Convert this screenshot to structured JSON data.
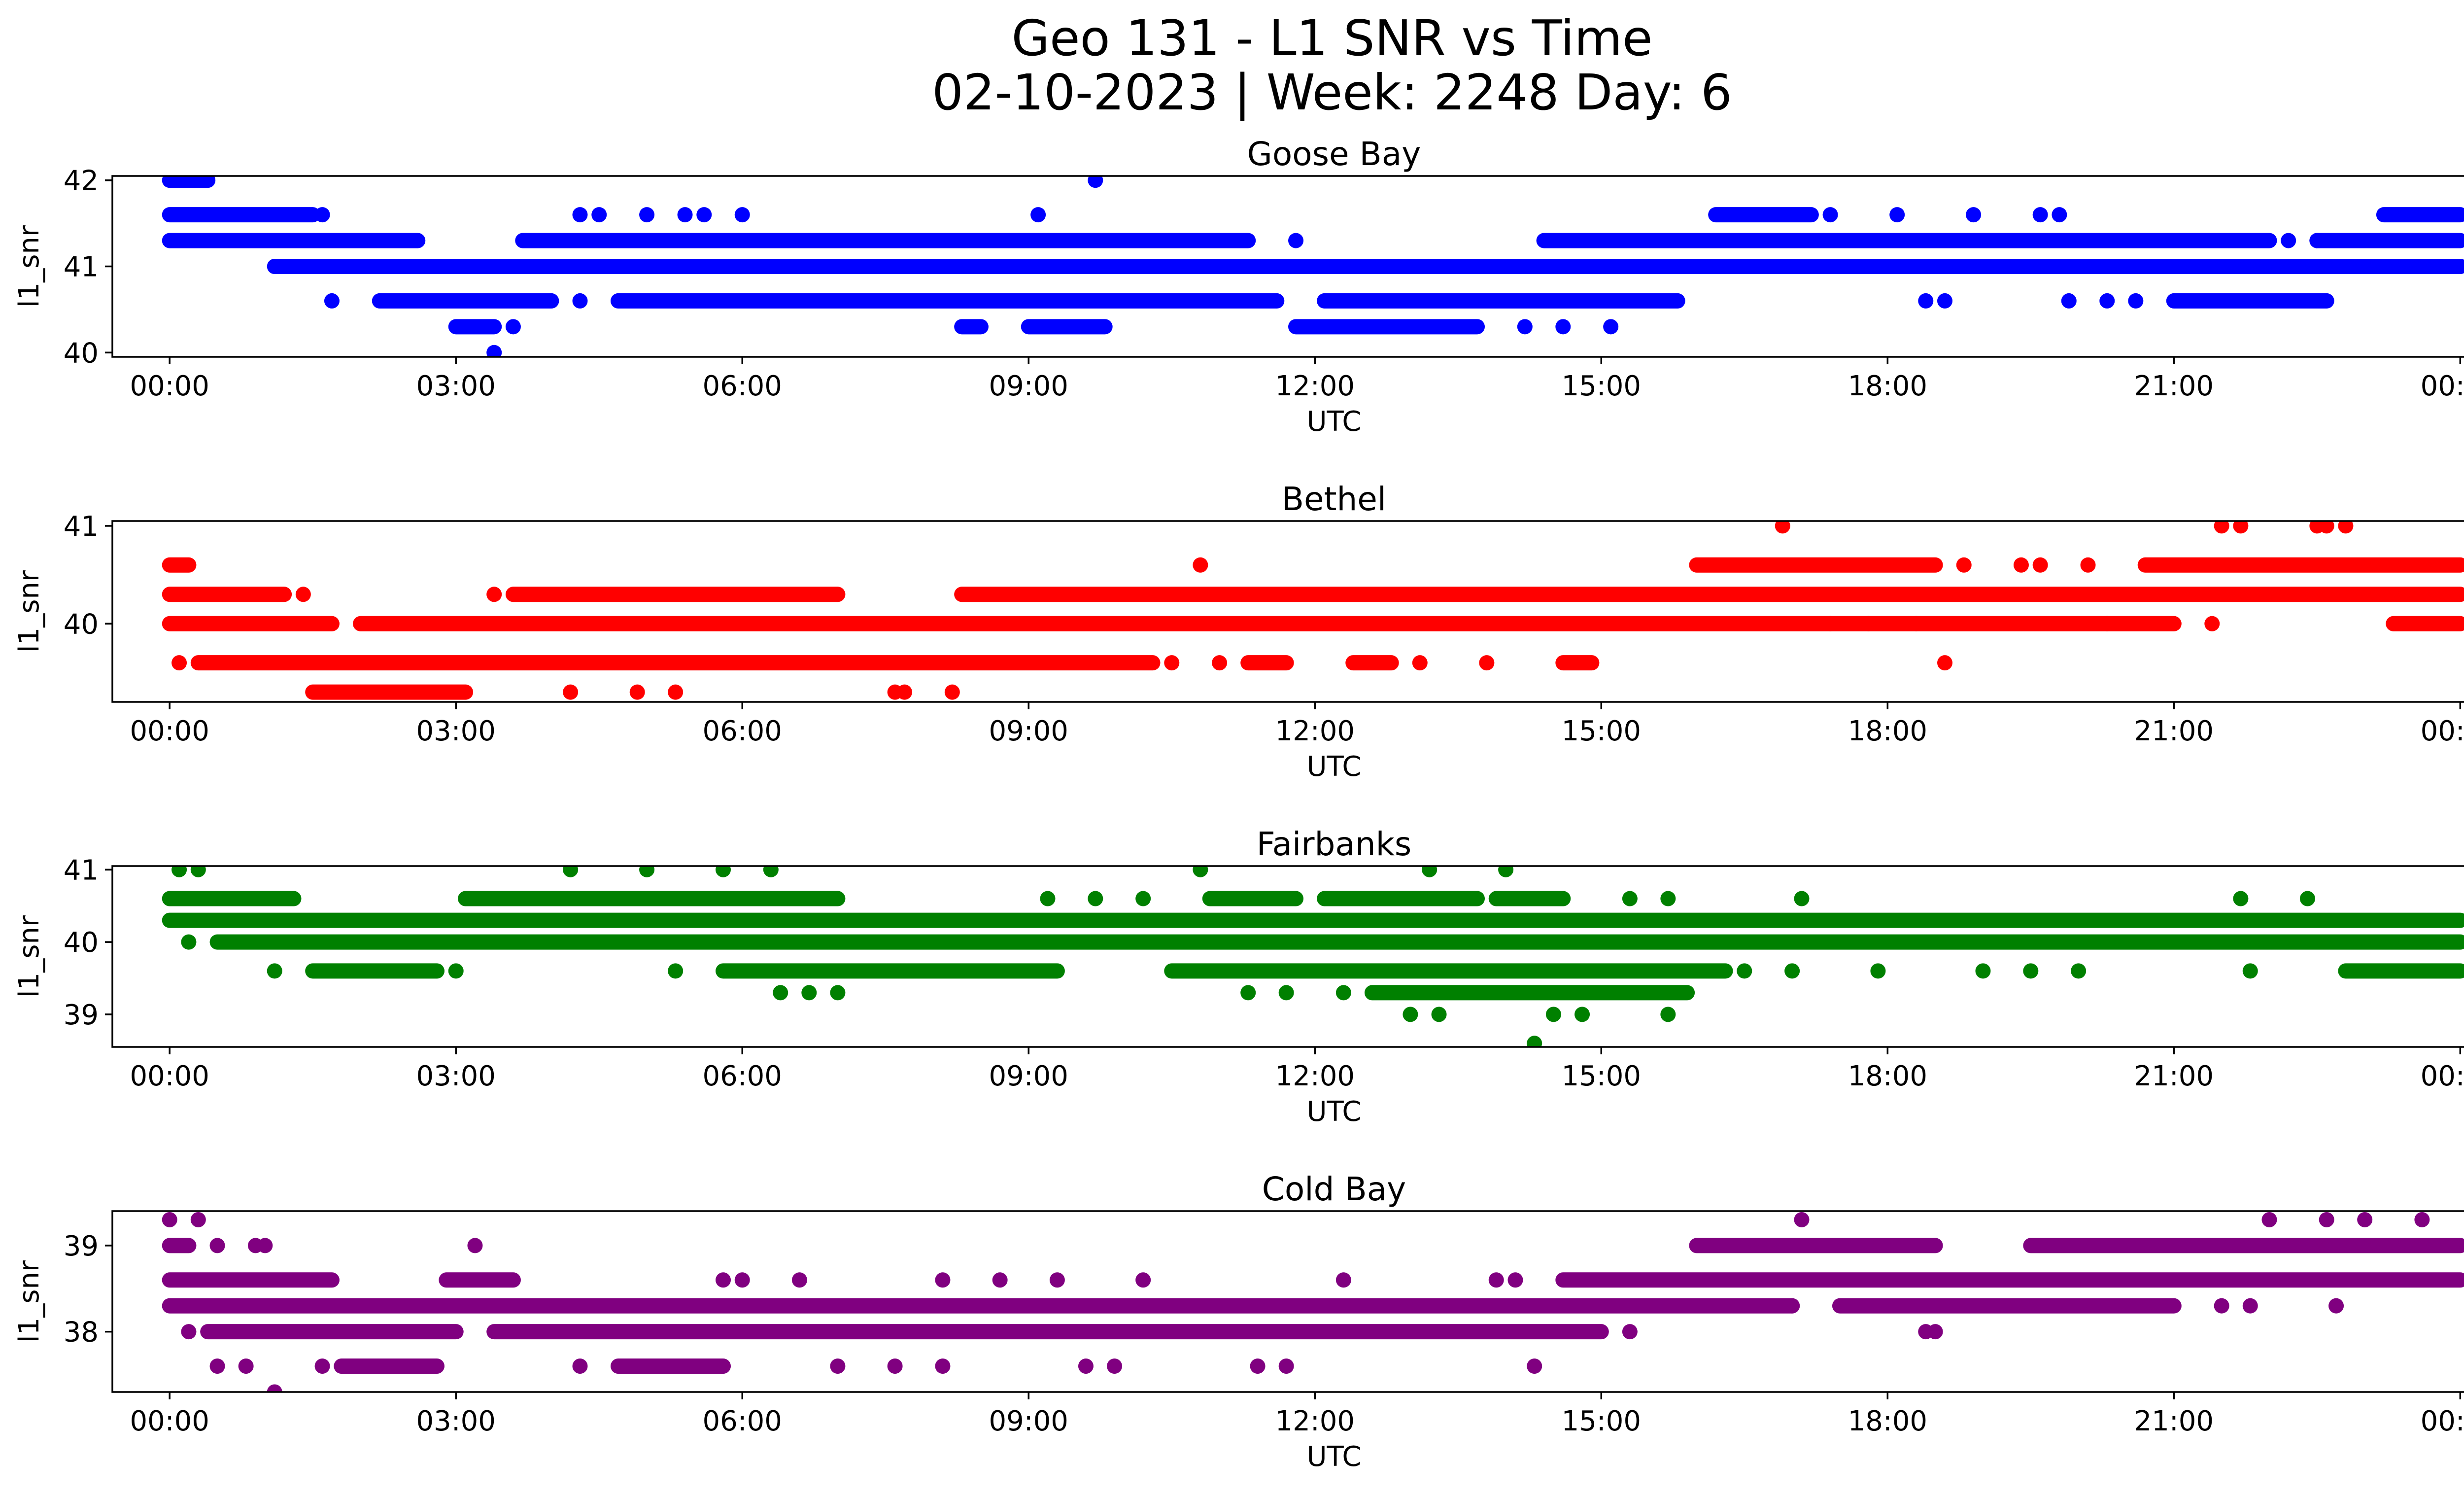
{
  "figure": {
    "title_line1": "Geo 131 - L1 SNR vs Time",
    "title_line2": "02-10-2023 | Week: 2248 Day: 6"
  },
  "chart_data": [
    {
      "type": "scatter",
      "title": "Goose Bay",
      "xlabel": "UTC",
      "ylabel": "l1_snr",
      "color": "#0000ff",
      "x_unit": "hours",
      "xlim": [
        -0.6,
        25.0
      ],
      "ylim": [
        39.95,
        42.05
      ],
      "xticks": [
        0,
        3,
        6,
        9,
        12,
        15,
        18,
        21,
        24
      ],
      "xtick_labels": [
        "00:00",
        "03:00",
        "06:00",
        "09:00",
        "12:00",
        "15:00",
        "18:00",
        "21:00",
        "00:00"
      ],
      "yticks": [
        40,
        41,
        42
      ],
      "ytick_labels": [
        "40",
        "41",
        "42"
      ],
      "bands": [
        {
          "y": 42.0,
          "segments": [
            [
              0.0,
              0.4
            ]
          ]
        },
        {
          "y": 41.6,
          "segments": [
            [
              0.0,
              1.5
            ],
            [
              16.2,
              17.2
            ],
            [
              23.2,
              24.0
            ]
          ]
        },
        {
          "y": 41.3,
          "segments": [
            [
              0.0,
              2.6
            ],
            [
              3.7,
              11.3
            ],
            [
              14.4,
              22.0
            ],
            [
              22.5,
              24.0
            ]
          ]
        },
        {
          "y": 41.0,
          "segments": [
            [
              1.1,
              24.0
            ]
          ]
        },
        {
          "y": 40.6,
          "segments": [
            [
              2.2,
              4.0
            ],
            [
              4.7,
              11.6
            ],
            [
              12.1,
              15.8
            ],
            [
              21.0,
              22.6
            ]
          ]
        },
        {
          "y": 40.3,
          "segments": [
            [
              3.0,
              3.4
            ],
            [
              8.3,
              8.5
            ],
            [
              9.0,
              9.8
            ],
            [
              11.8,
              13.7
            ]
          ]
        }
      ],
      "points": [
        [
          1.7,
          40.6
        ],
        [
          1.6,
          41.6
        ],
        [
          3.6,
          40.3
        ],
        [
          3.4,
          40.0
        ],
        [
          4.3,
          40.6
        ],
        [
          4.3,
          41.6
        ],
        [
          4.5,
          41.6
        ],
        [
          5.0,
          41.6
        ],
        [
          5.4,
          41.6
        ],
        [
          5.6,
          41.6
        ],
        [
          6.0,
          41.6
        ],
        [
          9.1,
          41.6
        ],
        [
          9.7,
          42.0
        ],
        [
          11.8,
          41.3
        ],
        [
          14.2,
          40.3
        ],
        [
          14.6,
          40.3
        ],
        [
          15.1,
          40.3
        ],
        [
          17.4,
          41.6
        ],
        [
          18.1,
          41.6
        ],
        [
          18.9,
          41.6
        ],
        [
          19.6,
          41.6
        ],
        [
          19.8,
          41.6
        ],
        [
          18.4,
          40.6
        ],
        [
          18.6,
          40.6
        ],
        [
          19.9,
          40.6
        ],
        [
          20.3,
          40.6
        ],
        [
          20.6,
          40.6
        ],
        [
          22.2,
          41.3
        ],
        [
          22.5,
          41.3
        ],
        [
          24.0,
          41.0
        ]
      ]
    },
    {
      "type": "scatter",
      "title": "Bethel",
      "xlabel": "UTC",
      "ylabel": "l1_snr",
      "color": "#ff0000",
      "x_unit": "hours",
      "xlim": [
        -0.6,
        25.0
      ],
      "ylim": [
        39.2,
        41.05
      ],
      "xticks": [
        0,
        3,
        6,
        9,
        12,
        15,
        18,
        21,
        24
      ],
      "xtick_labels": [
        "00:00",
        "03:00",
        "06:00",
        "09:00",
        "12:00",
        "15:00",
        "18:00",
        "21:00",
        "00:00"
      ],
      "yticks": [
        40,
        41
      ],
      "ytick_labels": [
        "40",
        "41"
      ],
      "bands": [
        {
          "y": 40.6,
          "segments": [
            [
              0.0,
              0.2
            ],
            [
              16.0,
              18.5
            ],
            [
              20.7,
              24.0
            ]
          ]
        },
        {
          "y": 40.3,
          "segments": [
            [
              0.0,
              1.2
            ],
            [
              3.6,
              7.0
            ],
            [
              8.3,
              24.0
            ]
          ]
        },
        {
          "y": 40.0,
          "segments": [
            [
              0.0,
              1.7
            ],
            [
              2.0,
              21.0
            ],
            [
              23.3,
              24.0
            ]
          ]
        },
        {
          "y": 39.6,
          "segments": [
            [
              0.3,
              10.3
            ],
            [
              11.3,
              11.7
            ],
            [
              12.4,
              12.8
            ],
            [
              14.6,
              14.9
            ]
          ]
        },
        {
          "y": 39.3,
          "segments": [
            [
              1.5,
              3.1
            ]
          ]
        }
      ],
      "points": [
        [
          0.1,
          39.6
        ],
        [
          1.4,
          40.3
        ],
        [
          3.4,
          40.3
        ],
        [
          4.2,
          39.3
        ],
        [
          4.9,
          39.3
        ],
        [
          5.3,
          39.3
        ],
        [
          7.6,
          39.3
        ],
        [
          7.7,
          39.3
        ],
        [
          8.2,
          39.3
        ],
        [
          10.8,
          40.6
        ],
        [
          11.0,
          39.6
        ],
        [
          10.5,
          39.6
        ],
        [
          13.1,
          39.6
        ],
        [
          13.8,
          39.6
        ],
        [
          16.9,
          41.0
        ],
        [
          21.5,
          41.0
        ],
        [
          21.7,
          41.0
        ],
        [
          22.5,
          41.0
        ],
        [
          22.6,
          41.0
        ],
        [
          22.8,
          41.0
        ],
        [
          18.6,
          39.6
        ],
        [
          21.4,
          40.0
        ],
        [
          18.8,
          40.6
        ],
        [
          19.4,
          40.6
        ],
        [
          19.6,
          40.6
        ],
        [
          20.1,
          40.6
        ],
        [
          17.4,
          40.0
        ],
        [
          17.8,
          40.0
        ],
        [
          18.3,
          40.0
        ],
        [
          20.3,
          40.0
        ]
      ]
    },
    {
      "type": "scatter",
      "title": "Fairbanks",
      "xlabel": "UTC",
      "ylabel": "l1_snr",
      "color": "#008000",
      "x_unit": "hours",
      "xlim": [
        -0.6,
        25.0
      ],
      "ylim": [
        38.55,
        41.05
      ],
      "xticks": [
        0,
        3,
        6,
        9,
        12,
        15,
        18,
        21,
        24
      ],
      "xtick_labels": [
        "00:00",
        "03:00",
        "06:00",
        "09:00",
        "12:00",
        "15:00",
        "18:00",
        "21:00",
        "00:00"
      ],
      "yticks": [
        39,
        40,
        41
      ],
      "ytick_labels": [
        "39",
        "40",
        "41"
      ],
      "bands": [
        {
          "y": 40.6,
          "segments": [
            [
              0.0,
              1.3
            ],
            [
              3.1,
              7.0
            ],
            [
              10.9,
              11.8
            ],
            [
              12.1,
              13.7
            ],
            [
              13.9,
              14.6
            ]
          ]
        },
        {
          "y": 40.3,
          "segments": [
            [
              0.0,
              24.0
            ]
          ]
        },
        {
          "y": 40.0,
          "segments": [
            [
              0.5,
              24.0
            ]
          ]
        },
        {
          "y": 39.6,
          "segments": [
            [
              1.5,
              2.8
            ],
            [
              5.8,
              9.3
            ],
            [
              10.5,
              16.3
            ],
            [
              22.8,
              24.0
            ]
          ]
        },
        {
          "y": 39.3,
          "segments": [
            [
              12.6,
              15.9
            ]
          ]
        }
      ],
      "points": [
        [
          0.1,
          41.0
        ],
        [
          0.3,
          41.0
        ],
        [
          4.2,
          41.0
        ],
        [
          5.0,
          41.0
        ],
        [
          5.8,
          41.0
        ],
        [
          6.3,
          41.0
        ],
        [
          10.8,
          41.0
        ],
        [
          13.2,
          41.0
        ],
        [
          14.0,
          41.0
        ],
        [
          17.1,
          40.6
        ],
        [
          21.7,
          40.6
        ],
        [
          22.4,
          40.6
        ],
        [
          9.2,
          40.6
        ],
        [
          9.7,
          40.6
        ],
        [
          10.2,
          40.6
        ],
        [
          15.3,
          40.6
        ],
        [
          15.7,
          40.6
        ],
        [
          1.1,
          39.6
        ],
        [
          3.0,
          39.6
        ],
        [
          5.3,
          39.6
        ],
        [
          6.4,
          39.3
        ],
        [
          6.7,
          39.3
        ],
        [
          7.0,
          39.3
        ],
        [
          11.3,
          39.3
        ],
        [
          11.7,
          39.3
        ],
        [
          12.3,
          39.3
        ],
        [
          13.0,
          39.0
        ],
        [
          13.3,
          39.0
        ],
        [
          14.3,
          38.6
        ],
        [
          14.5,
          39.0
        ],
        [
          14.8,
          39.0
        ],
        [
          15.7,
          39.0
        ],
        [
          16.5,
          39.6
        ],
        [
          17.0,
          39.6
        ],
        [
          17.9,
          39.6
        ],
        [
          19.0,
          39.6
        ],
        [
          19.5,
          39.6
        ],
        [
          20.0,
          39.6
        ],
        [
          21.8,
          39.6
        ],
        [
          0.2,
          40.0
        ]
      ]
    },
    {
      "type": "scatter",
      "title": "Cold Bay",
      "xlabel": "UTC",
      "ylabel": "l1_snr",
      "color": "#800080",
      "x_unit": "hours",
      "xlim": [
        -0.6,
        25.0
      ],
      "ylim": [
        37.3,
        39.4
      ],
      "xticks": [
        0,
        3,
        6,
        9,
        12,
        15,
        18,
        21,
        24
      ],
      "xtick_labels": [
        "00:00",
        "03:00",
        "06:00",
        "09:00",
        "12:00",
        "15:00",
        "18:00",
        "21:00",
        "00:00"
      ],
      "yticks": [
        38,
        39
      ],
      "ytick_labels": [
        "38",
        "39"
      ],
      "bands": [
        {
          "y": 39.0,
          "segments": [
            [
              0.0,
              0.2
            ],
            [
              16.0,
              18.5
            ],
            [
              19.5,
              24.0
            ]
          ]
        },
        {
          "y": 38.6,
          "segments": [
            [
              0.0,
              1.7
            ],
            [
              2.9,
              3.6
            ],
            [
              14.6,
              24.0
            ]
          ]
        },
        {
          "y": 38.3,
          "segments": [
            [
              0.0,
              17.0
            ],
            [
              17.5,
              21.0
            ]
          ]
        },
        {
          "y": 38.0,
          "segments": [
            [
              0.4,
              3.0
            ],
            [
              3.4,
              15.0
            ]
          ]
        },
        {
          "y": 37.6,
          "segments": [
            [
              1.8,
              2.8
            ],
            [
              4.7,
              5.8
            ]
          ]
        }
      ],
      "points": [
        [
          0.0,
          39.3
        ],
        [
          0.3,
          39.3
        ],
        [
          0.9,
          39.0
        ],
        [
          1.0,
          39.0
        ],
        [
          0.5,
          39.0
        ],
        [
          3.2,
          39.0
        ],
        [
          17.1,
          39.3
        ],
        [
          22.0,
          39.3
        ],
        [
          22.6,
          39.3
        ],
        [
          23.0,
          39.3
        ],
        [
          23.6,
          39.3
        ],
        [
          1.1,
          37.3
        ],
        [
          0.5,
          37.6
        ],
        [
          0.8,
          37.6
        ],
        [
          1.6,
          37.6
        ],
        [
          4.3,
          37.6
        ],
        [
          7.0,
          37.6
        ],
        [
          7.6,
          37.6
        ],
        [
          8.1,
          37.6
        ],
        [
          9.6,
          37.6
        ],
        [
          9.9,
          37.6
        ],
        [
          11.4,
          37.6
        ],
        [
          11.7,
          37.6
        ],
        [
          14.3,
          37.6
        ],
        [
          18.4,
          38.0
        ],
        [
          18.5,
          38.0
        ],
        [
          15.3,
          38.0
        ],
        [
          22.7,
          38.3
        ],
        [
          21.5,
          38.3
        ],
        [
          21.8,
          38.3
        ],
        [
          5.8,
          38.6
        ],
        [
          6.0,
          38.6
        ],
        [
          6.6,
          38.6
        ],
        [
          8.1,
          38.6
        ],
        [
          8.7,
          38.6
        ],
        [
          9.3,
          38.6
        ],
        [
          10.2,
          38.6
        ],
        [
          12.3,
          38.6
        ],
        [
          13.9,
          38.6
        ],
        [
          14.1,
          38.6
        ],
        [
          17.0,
          38.3
        ],
        [
          0.2,
          38.0
        ]
      ]
    }
  ]
}
